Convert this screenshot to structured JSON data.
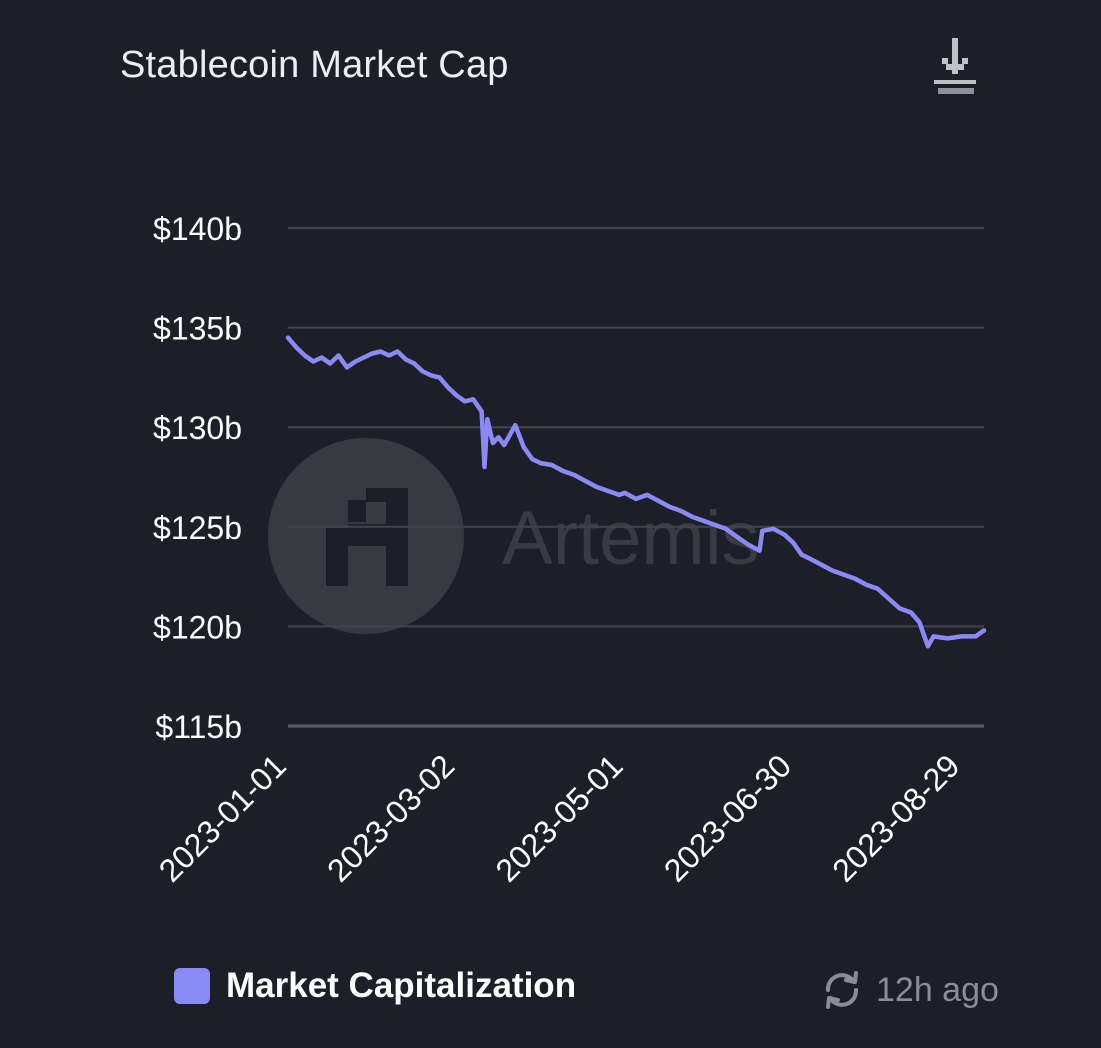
{
  "header": {
    "title": "Stablecoin Market Cap",
    "download_icon": "download-icon"
  },
  "watermark": {
    "text": "Artemis",
    "logo_icon": "artemis-logo-icon"
  },
  "legend": {
    "label": "Market Capitalization",
    "color": "#8a8af5"
  },
  "status": {
    "updated": "12h ago",
    "refresh_icon": "refresh-icon"
  },
  "chart_data": {
    "type": "line",
    "title": "Stablecoin Market Cap",
    "xlabel": "",
    "ylabel": "",
    "x_ticks": [
      "2023-01-01",
      "2023-03-02",
      "2023-05-01",
      "2023-06-30",
      "2023-08-29"
    ],
    "y_ticks": [
      "$140b",
      "$135b",
      "$130b",
      "$125b",
      "$120b",
      "$115b"
    ],
    "ylim": [
      115,
      140
    ],
    "xlim": [
      "2023-01-01",
      "2023-09-06"
    ],
    "grid": true,
    "legend_position": "bottom-left",
    "series": [
      {
        "name": "Market Capitalization",
        "color": "#8a8af5",
        "points": [
          [
            "2023-01-01",
            134.5
          ],
          [
            "2023-01-04",
            134.0
          ],
          [
            "2023-01-07",
            133.6
          ],
          [
            "2023-01-10",
            133.3
          ],
          [
            "2023-01-13",
            133.5
          ],
          [
            "2023-01-16",
            133.2
          ],
          [
            "2023-01-19",
            133.6
          ],
          [
            "2023-01-22",
            133.0
          ],
          [
            "2023-01-25",
            133.3
          ],
          [
            "2023-01-28",
            133.5
          ],
          [
            "2023-01-31",
            133.7
          ],
          [
            "2023-02-03",
            133.8
          ],
          [
            "2023-02-06",
            133.6
          ],
          [
            "2023-02-09",
            133.8
          ],
          [
            "2023-02-12",
            133.4
          ],
          [
            "2023-02-15",
            133.2
          ],
          [
            "2023-02-18",
            132.8
          ],
          [
            "2023-02-21",
            132.6
          ],
          [
            "2023-02-24",
            132.5
          ],
          [
            "2023-02-27",
            132.0
          ],
          [
            "2023-03-02",
            131.6
          ],
          [
            "2023-03-05",
            131.3
          ],
          [
            "2023-03-08",
            131.4
          ],
          [
            "2023-03-11",
            130.8
          ],
          [
            "2023-03-12",
            128.0
          ],
          [
            "2023-03-13",
            130.4
          ],
          [
            "2023-03-15",
            129.2
          ],
          [
            "2023-03-17",
            129.5
          ],
          [
            "2023-03-19",
            129.1
          ],
          [
            "2023-03-21",
            129.6
          ],
          [
            "2023-03-23",
            130.1
          ],
          [
            "2023-03-26",
            129.0
          ],
          [
            "2023-03-29",
            128.4
          ],
          [
            "2023-04-01",
            128.2
          ],
          [
            "2023-04-05",
            128.1
          ],
          [
            "2023-04-09",
            127.8
          ],
          [
            "2023-04-13",
            127.6
          ],
          [
            "2023-04-17",
            127.3
          ],
          [
            "2023-04-21",
            127.0
          ],
          [
            "2023-04-25",
            126.8
          ],
          [
            "2023-04-29",
            126.6
          ],
          [
            "2023-05-01",
            126.7
          ],
          [
            "2023-05-05",
            126.4
          ],
          [
            "2023-05-09",
            126.6
          ],
          [
            "2023-05-13",
            126.3
          ],
          [
            "2023-05-17",
            126.0
          ],
          [
            "2023-05-21",
            125.8
          ],
          [
            "2023-05-25",
            125.5
          ],
          [
            "2023-05-29",
            125.3
          ],
          [
            "2023-06-02",
            125.1
          ],
          [
            "2023-06-06",
            124.9
          ],
          [
            "2023-06-10",
            124.5
          ],
          [
            "2023-06-14",
            124.1
          ],
          [
            "2023-06-18",
            123.8
          ],
          [
            "2023-06-19",
            124.8
          ],
          [
            "2023-06-23",
            124.9
          ],
          [
            "2023-06-27",
            124.6
          ],
          [
            "2023-06-30",
            124.2
          ],
          [
            "2023-07-03",
            123.6
          ],
          [
            "2023-07-06",
            123.4
          ],
          [
            "2023-07-10",
            123.1
          ],
          [
            "2023-07-14",
            122.8
          ],
          [
            "2023-07-18",
            122.6
          ],
          [
            "2023-07-22",
            122.4
          ],
          [
            "2023-07-26",
            122.1
          ],
          [
            "2023-07-30",
            121.9
          ],
          [
            "2023-08-03",
            121.4
          ],
          [
            "2023-08-07",
            120.9
          ],
          [
            "2023-08-11",
            120.7
          ],
          [
            "2023-08-14",
            120.2
          ],
          [
            "2023-08-16",
            119.4
          ],
          [
            "2023-08-17",
            119.0
          ],
          [
            "2023-08-19",
            119.5
          ],
          [
            "2023-08-24",
            119.4
          ],
          [
            "2023-08-29",
            119.5
          ],
          [
            "2023-09-03",
            119.5
          ],
          [
            "2023-09-06",
            119.8
          ]
        ]
      }
    ]
  }
}
